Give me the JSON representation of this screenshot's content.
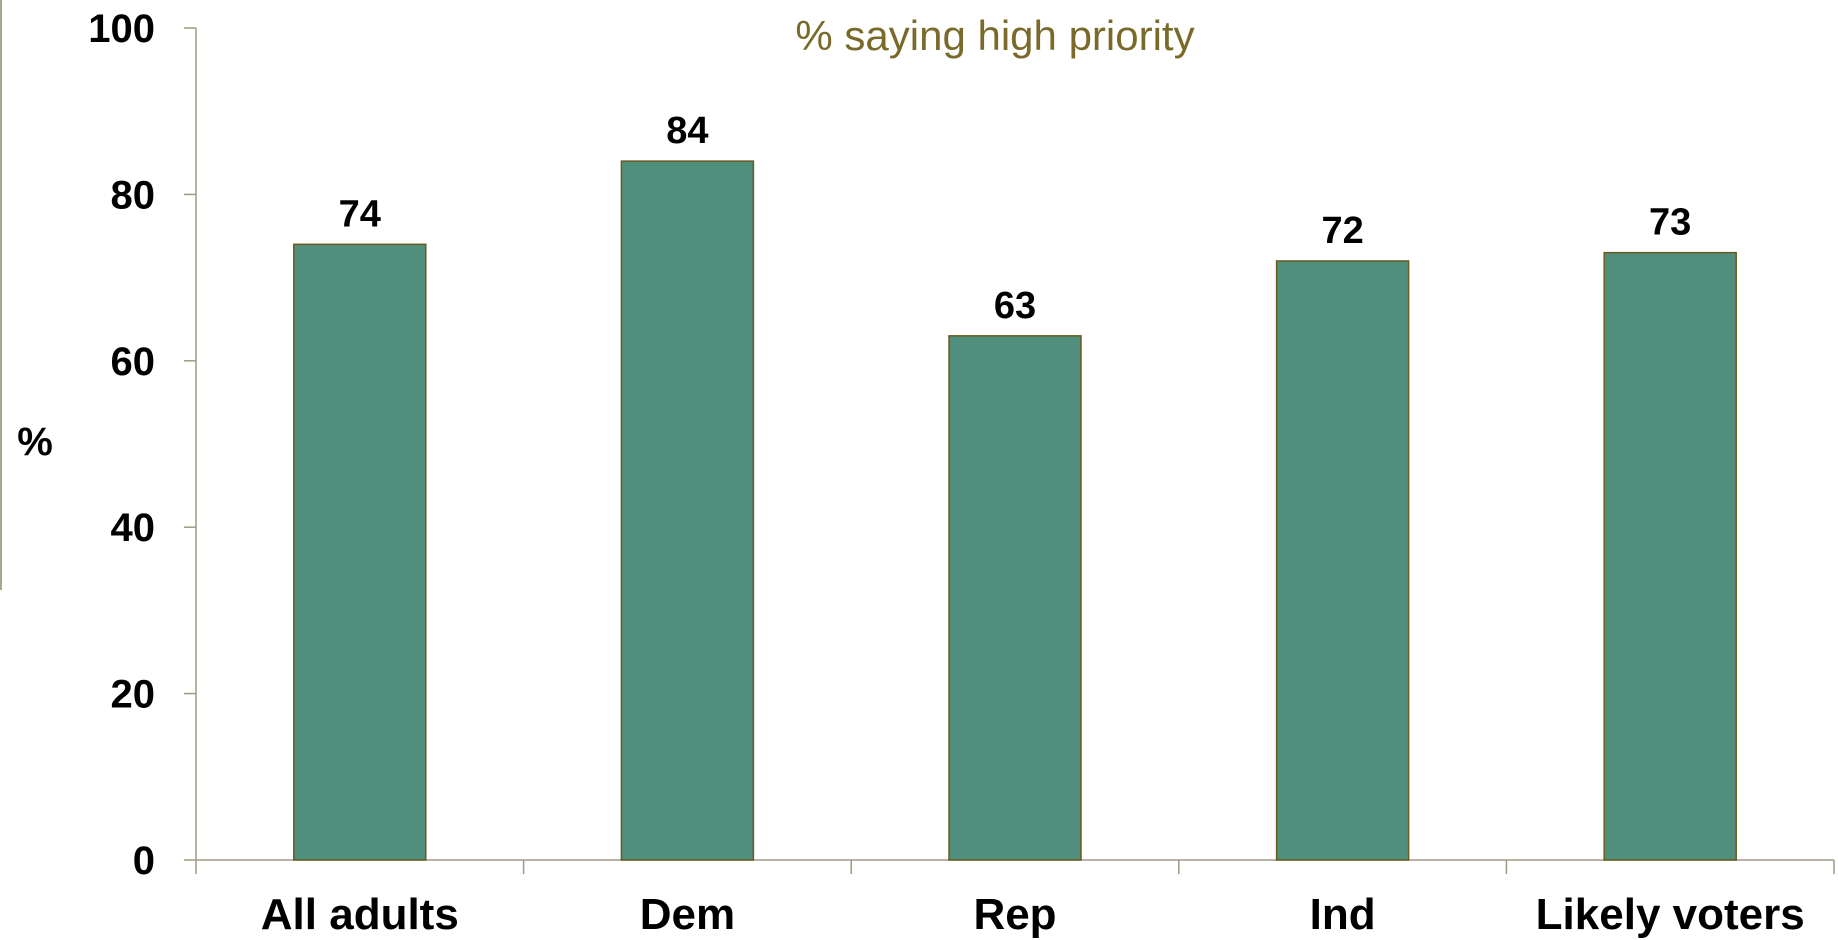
{
  "chart_data": {
    "type": "bar",
    "title": "% saying high priority",
    "ylabel": "%",
    "xlabel": "",
    "categories": [
      "All adults",
      "Dem",
      "Rep",
      "Ind",
      "Likely voters"
    ],
    "values": [
      74,
      84,
      63,
      72,
      73
    ],
    "ylim": [
      0,
      100
    ],
    "yticks": [
      "0",
      "20",
      "40",
      "60",
      "80",
      "100"
    ],
    "grid": false,
    "legend": "none",
    "bar_color": "#4f8f7c",
    "bar_edge_color": "#6b5a1e",
    "axis_color": "#a09a85",
    "title_color": "#7a6a2a"
  }
}
